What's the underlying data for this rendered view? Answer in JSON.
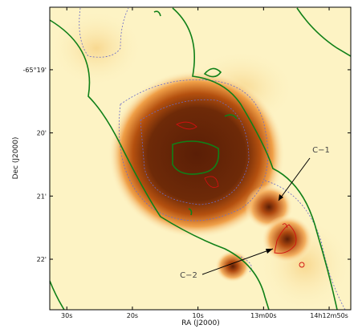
{
  "chart_data": {
    "type": "image",
    "x_label": "RA (J2000)",
    "y_label": "Dec (J2000)",
    "xlim": [
      92.6,
      46.7
    ],
    "xticks": [
      {
        "value": 90,
        "label": "30s"
      },
      {
        "value": 80,
        "label": "20s"
      },
      {
        "value": 70,
        "label": "10s"
      },
      {
        "value": 60,
        "label": "13m00s"
      },
      {
        "value": 50,
        "label": "14h12m50s"
      }
    ],
    "ylim": [
      22.8,
      18.01
    ],
    "yticks": [
      {
        "value": 19,
        "label": "-65°19'"
      },
      {
        "value": 20,
        "label": "20'"
      },
      {
        "value": 21,
        "label": "21'"
      },
      {
        "value": 22,
        "label": "22'"
      }
    ],
    "annotations": [
      {
        "text": "C−1"
      },
      {
        "text": "C−2"
      }
    ]
  }
}
